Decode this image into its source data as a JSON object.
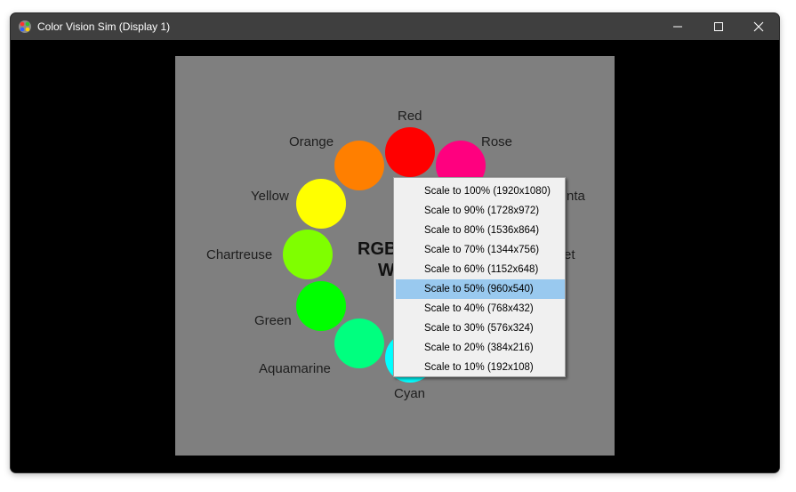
{
  "window": {
    "title": "Color Vision Sim (Display 1)"
  },
  "canvas": {
    "center_text_line1": "RGB",
    "center_text_line2": "W",
    "colors": [
      {
        "name": "Red",
        "hex": "#ff0000"
      },
      {
        "name": "Rose",
        "hex": "#ff007f"
      },
      {
        "name": "Magenta",
        "label_visible": "nta",
        "hex": "#ff00ff"
      },
      {
        "name": "Violet",
        "label_visible": "et",
        "hex": "#7f00ff"
      },
      {
        "name": "Cyan",
        "hex": "#00ffff"
      },
      {
        "name": "Aquamarine",
        "hex": "#00ff7f"
      },
      {
        "name": "Green",
        "hex": "#00ff00"
      },
      {
        "name": "Chartreuse",
        "hex": "#7fff00"
      },
      {
        "name": "Yellow",
        "hex": "#ffff00"
      },
      {
        "name": "Orange",
        "hex": "#ff7f00"
      }
    ]
  },
  "context_menu": {
    "items": [
      {
        "label": "Scale to 100% (1920x1080)",
        "highlighted": false
      },
      {
        "label": "Scale to 90% (1728x972)",
        "highlighted": false
      },
      {
        "label": "Scale to 80% (1536x864)",
        "highlighted": false
      },
      {
        "label": "Scale to 70% (1344x756)",
        "highlighted": false
      },
      {
        "label": "Scale to 60% (1152x648)",
        "highlighted": false
      },
      {
        "label": "Scale to 50% (960x540)",
        "highlighted": true
      },
      {
        "label": "Scale to 40% (768x432)",
        "highlighted": false
      },
      {
        "label": "Scale to 30% (576x324)",
        "highlighted": false
      },
      {
        "label": "Scale to 20% (384x216)",
        "highlighted": false
      },
      {
        "label": "Scale to 10% (192x108)",
        "highlighted": false
      }
    ]
  },
  "colors": {
    "titlebar": "#3f3f3f",
    "canvas_bg": "#7f7f7f",
    "menu_bg": "#f0f0f0",
    "menu_highlight": "#99c9ef"
  }
}
